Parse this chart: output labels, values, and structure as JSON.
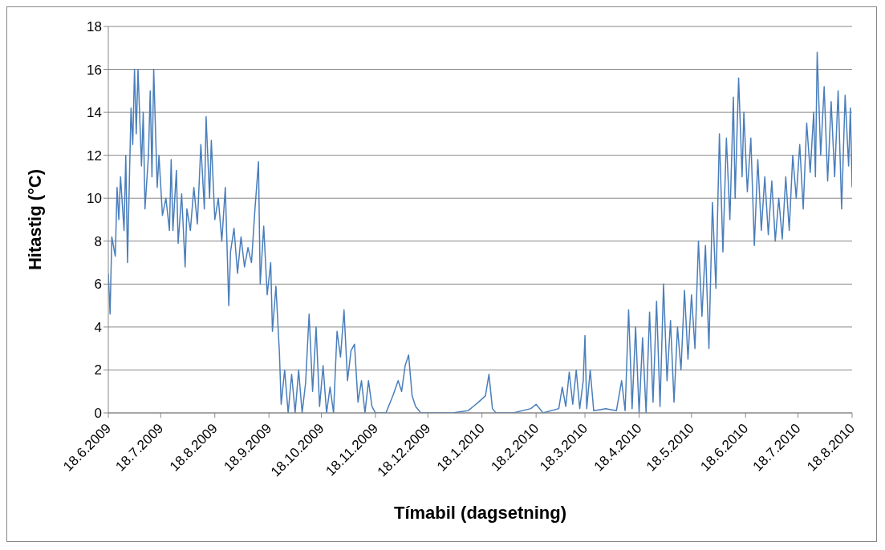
{
  "chart_data": {
    "type": "line",
    "xlabel": "Tímabil (dagsetning)",
    "ylabel": "Hitastig (°C)",
    "xlim": [
      "2009-06-18",
      "2010-08-18"
    ],
    "xticks": [
      {
        "value": "2009-06-18",
        "label": "18.6.2009"
      },
      {
        "value": "2009-07-18",
        "label": "18.7.2009"
      },
      {
        "value": "2009-08-18",
        "label": "18.8.2009"
      },
      {
        "value": "2009-09-18",
        "label": "18.9.2009"
      },
      {
        "value": "2009-10-18",
        "label": "18.10.2009"
      },
      {
        "value": "2009-11-18",
        "label": "18.11.2009"
      },
      {
        "value": "2009-12-18",
        "label": "18.12.2009"
      },
      {
        "value": "2010-01-18",
        "label": "18.1.2010"
      },
      {
        "value": "2010-02-18",
        "label": "18.2.2010"
      },
      {
        "value": "2010-03-18",
        "label": "18.3.2010"
      },
      {
        "value": "2010-04-18",
        "label": "18.4.2010"
      },
      {
        "value": "2010-05-18",
        "label": "18.5.2010"
      },
      {
        "value": "2010-06-18",
        "label": "18.6.2010"
      },
      {
        "value": "2010-07-18",
        "label": "18.7.2010"
      },
      {
        "value": "2010-08-18",
        "label": "18.8.2010"
      }
    ],
    "ylim": [
      0,
      18
    ],
    "yticks": [
      0,
      2,
      4,
      6,
      8,
      10,
      12,
      14,
      16,
      18
    ],
    "grid": "y",
    "marker": "none",
    "series": [
      {
        "color": "#4a7ebb",
        "x": [
          "2009-06-18",
          "2009-06-19",
          "2009-06-20",
          "2009-06-22",
          "2009-06-23",
          "2009-06-24",
          "2009-06-25",
          "2009-06-27",
          "2009-06-28",
          "2009-06-29",
          "2009-07-01",
          "2009-07-02",
          "2009-07-03",
          "2009-07-04",
          "2009-07-05",
          "2009-07-07",
          "2009-07-08",
          "2009-07-09",
          "2009-07-11",
          "2009-07-12",
          "2009-07-13",
          "2009-07-14",
          "2009-07-16",
          "2009-07-17",
          "2009-07-19",
          "2009-07-21",
          "2009-07-23",
          "2009-07-24",
          "2009-07-25",
          "2009-07-27",
          "2009-07-28",
          "2009-07-30",
          "2009-08-01",
          "2009-08-02",
          "2009-08-04",
          "2009-08-06",
          "2009-08-08",
          "2009-08-10",
          "2009-08-12",
          "2009-08-13",
          "2009-08-15",
          "2009-08-16",
          "2009-08-18",
          "2009-08-20",
          "2009-08-22",
          "2009-08-24",
          "2009-08-26",
          "2009-08-27",
          "2009-08-29",
          "2009-08-31",
          "2009-09-02",
          "2009-09-04",
          "2009-09-06",
          "2009-09-08",
          "2009-09-10",
          "2009-09-12",
          "2009-09-13",
          "2009-09-15",
          "2009-09-17",
          "2009-09-19",
          "2009-09-20",
          "2009-09-22",
          "2009-09-24",
          "2009-09-25",
          "2009-09-27",
          "2009-09-29",
          "2009-10-01",
          "2009-10-03",
          "2009-10-05",
          "2009-10-07",
          "2009-10-09",
          "2009-10-11",
          "2009-10-13",
          "2009-10-15",
          "2009-10-17",
          "2009-10-19",
          "2009-10-21",
          "2009-10-23",
          "2009-10-25",
          "2009-10-27",
          "2009-10-29",
          "2009-10-31",
          "2009-11-02",
          "2009-11-04",
          "2009-11-06",
          "2009-11-08",
          "2009-11-10",
          "2009-11-12",
          "2009-11-14",
          "2009-11-16",
          "2009-11-18",
          "2009-11-24",
          "2009-11-28",
          "2009-12-01",
          "2009-12-03",
          "2009-12-05",
          "2009-12-07",
          "2009-12-09",
          "2009-12-11",
          "2009-12-14",
          "2010-01-01",
          "2010-01-10",
          "2010-01-13",
          "2010-01-16",
          "2010-01-20",
          "2010-01-22",
          "2010-01-24",
          "2010-01-26",
          "2010-02-05",
          "2010-02-15",
          "2010-02-18",
          "2010-02-22",
          "2010-03-03",
          "2010-03-05",
          "2010-03-07",
          "2010-03-09",
          "2010-03-11",
          "2010-03-13",
          "2010-03-15",
          "2010-03-17",
          "2010-03-18",
          "2010-03-19",
          "2010-03-21",
          "2010-03-23",
          "2010-03-30",
          "2010-04-05",
          "2010-04-08",
          "2010-04-10",
          "2010-04-12",
          "2010-04-14",
          "2010-04-16",
          "2010-04-18",
          "2010-04-20",
          "2010-04-22",
          "2010-04-24",
          "2010-04-26",
          "2010-04-28",
          "2010-04-30",
          "2010-05-02",
          "2010-05-04",
          "2010-05-06",
          "2010-05-08",
          "2010-05-10",
          "2010-05-12",
          "2010-05-14",
          "2010-05-16",
          "2010-05-18",
          "2010-05-20",
          "2010-05-22",
          "2010-05-24",
          "2010-05-26",
          "2010-05-28",
          "2010-05-30",
          "2010-06-01",
          "2010-06-03",
          "2010-06-05",
          "2010-06-07",
          "2010-06-09",
          "2010-06-11",
          "2010-06-12",
          "2010-06-14",
          "2010-06-16",
          "2010-06-17",
          "2010-06-19",
          "2010-06-21",
          "2010-06-23",
          "2010-06-25",
          "2010-06-27",
          "2010-06-29",
          "2010-07-01",
          "2010-07-03",
          "2010-07-05",
          "2010-07-07",
          "2010-07-09",
          "2010-07-11",
          "2010-07-13",
          "2010-07-15",
          "2010-07-17",
          "2010-07-19",
          "2010-07-21",
          "2010-07-23",
          "2010-07-25",
          "2010-07-27",
          "2010-07-28",
          "2010-07-29",
          "2010-07-31",
          "2010-08-02",
          "2010-08-04",
          "2010-08-06",
          "2010-08-08",
          "2010-08-10",
          "2010-08-12",
          "2010-08-14",
          "2010-08-16",
          "2010-08-17",
          "2010-08-18"
        ],
        "values": [
          6.5,
          4.6,
          8.2,
          7.3,
          10.5,
          9,
          11,
          8.5,
          12,
          7,
          14.2,
          12.5,
          16,
          13,
          16,
          11.5,
          14,
          9.5,
          12,
          15,
          11,
          16,
          10.5,
          12,
          9.2,
          10,
          8.5,
          11.8,
          8.5,
          11.3,
          7.9,
          10.2,
          6.8,
          9.5,
          8.5,
          10.5,
          8.8,
          12.5,
          9.5,
          13.8,
          10,
          12.7,
          9,
          10,
          8,
          10.5,
          5,
          7.5,
          8.6,
          6.5,
          8.2,
          6.8,
          7.7,
          7,
          9.5,
          11.7,
          6,
          8.7,
          5.5,
          7,
          3.8,
          5.9,
          2.8,
          0.4,
          2,
          0,
          1.8,
          0,
          2,
          0,
          1.4,
          4.6,
          1,
          4,
          0.3,
          2.2,
          0,
          1.2,
          0,
          3.8,
          2.6,
          4.8,
          1.5,
          2.9,
          3.2,
          0.5,
          1.5,
          0,
          1.5,
          0.3,
          0,
          0,
          0.8,
          1.5,
          1,
          2.2,
          2.7,
          0.8,
          0.3,
          0,
          0,
          0.1,
          0.3,
          0.5,
          0.8,
          1.8,
          0.2,
          0,
          0,
          0.2,
          0.4,
          0,
          0.2,
          1.2,
          0.3,
          1.9,
          0.4,
          2,
          0.2,
          1.5,
          3.6,
          0.2,
          2,
          0.1,
          0.2,
          0.1,
          1.5,
          0.1,
          4.8,
          0.2,
          4,
          0,
          3.5,
          0,
          4.7,
          0.5,
          5.2,
          0.3,
          6,
          1.5,
          4.3,
          0.5,
          4,
          2,
          5.7,
          2.5,
          5.5,
          3,
          8,
          4.5,
          7.8,
          3,
          9.8,
          5.8,
          13,
          7.5,
          12.8,
          9,
          14.7,
          10,
          15.6,
          11,
          14,
          10.3,
          12.8,
          7.8,
          11.8,
          8.5,
          11,
          8.3,
          10.8,
          8,
          10,
          8.1,
          11,
          8.5,
          12,
          10,
          12.5,
          9.5,
          13.5,
          11.2,
          14,
          11,
          16.8,
          12,
          15.2,
          10.8,
          14.5,
          11,
          15,
          9.5,
          14.8,
          11.5,
          14.2,
          10.5
        ]
      }
    ]
  }
}
